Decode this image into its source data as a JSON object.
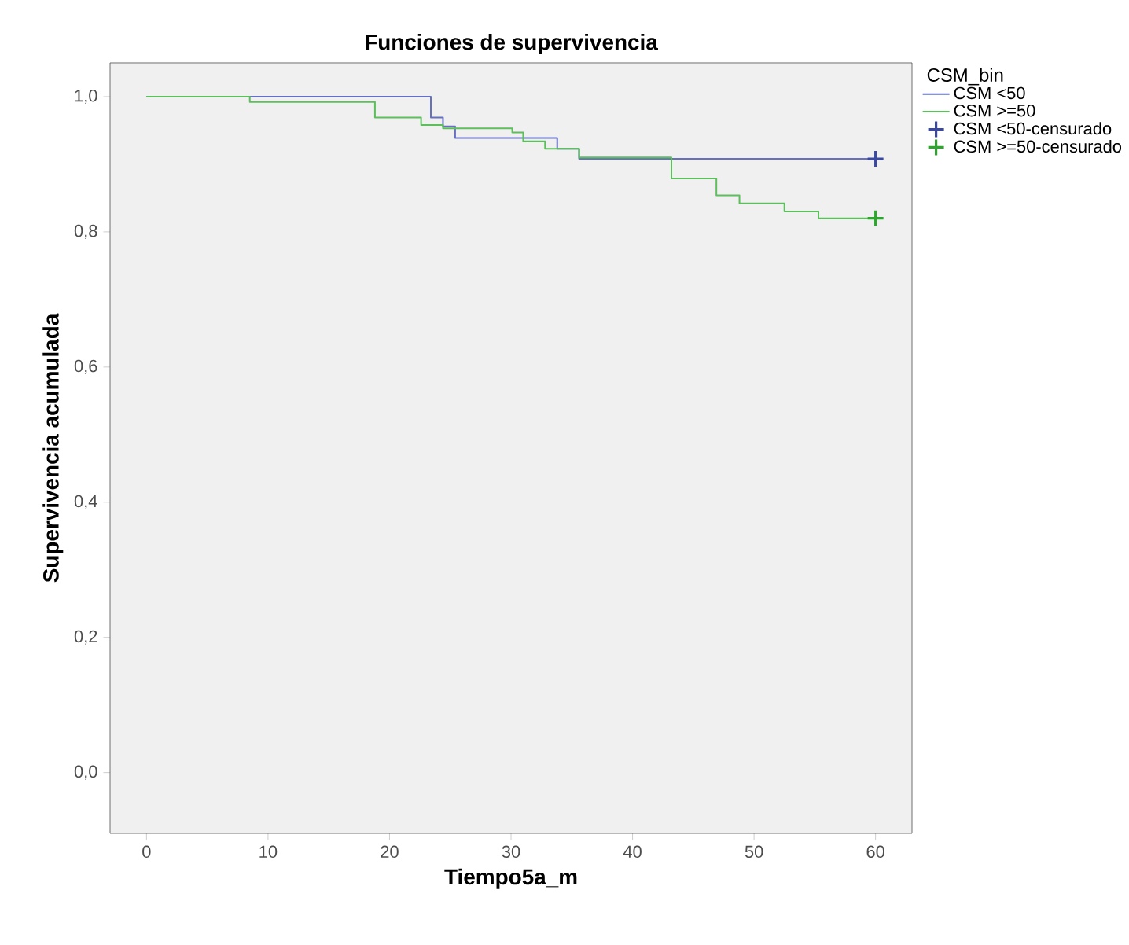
{
  "chart_data": {
    "type": "step",
    "title": "Funciones de supervivencia",
    "xlabel": "Tiempo5a_m",
    "ylabel": "Supervivencia acumulada",
    "legend_title": "CSM_bin",
    "xlim": [
      -3,
      63
    ],
    "ylim": [
      -0.09,
      1.05
    ],
    "xticks": [
      0,
      10,
      20,
      30,
      40,
      50,
      60
    ],
    "yticks": [
      {
        "value": 0,
        "label": "0,0"
      },
      {
        "value": 0.2,
        "label": "0,2"
      },
      {
        "value": 0.4,
        "label": "0,4"
      },
      {
        "value": 0.6,
        "label": "0,6"
      },
      {
        "value": 0.8,
        "label": "0,8"
      },
      {
        "value": 1.0,
        "label": "1,0"
      }
    ],
    "grid": false,
    "legend": "right",
    "series": [
      {
        "name": "CSM <50",
        "color": "#6670c0",
        "x": [
          0,
          23.4,
          24.4,
          25.4,
          33.8,
          35.6,
          60
        ],
        "values": [
          1,
          0.969,
          0.956,
          0.939,
          0.923,
          0.908,
          0.908
        ]
      },
      {
        "name": "CSM >=50",
        "color": "#5cbf5c",
        "x": [
          0,
          8.5,
          18.8,
          22.6,
          24.4,
          30.1,
          31.0,
          32.8,
          35.6,
          43.2,
          46.9,
          48.8,
          52.5,
          55.3,
          60
        ],
        "values": [
          1,
          0.992,
          0.969,
          0.958,
          0.953,
          0.947,
          0.934,
          0.923,
          0.91,
          0.879,
          0.854,
          0.842,
          0.83,
          0.82,
          0.82
        ]
      },
      {
        "name": "CSM <50-censurado",
        "type": "scatter",
        "marker": "cross",
        "color": "#3a48a0",
        "x": [
          60
        ],
        "values": [
          0.908
        ]
      },
      {
        "name": "CSM >=50-censurado",
        "type": "scatter",
        "marker": "cross",
        "color": "#2ea52e",
        "x": [
          60
        ],
        "values": [
          0.82
        ]
      }
    ]
  }
}
